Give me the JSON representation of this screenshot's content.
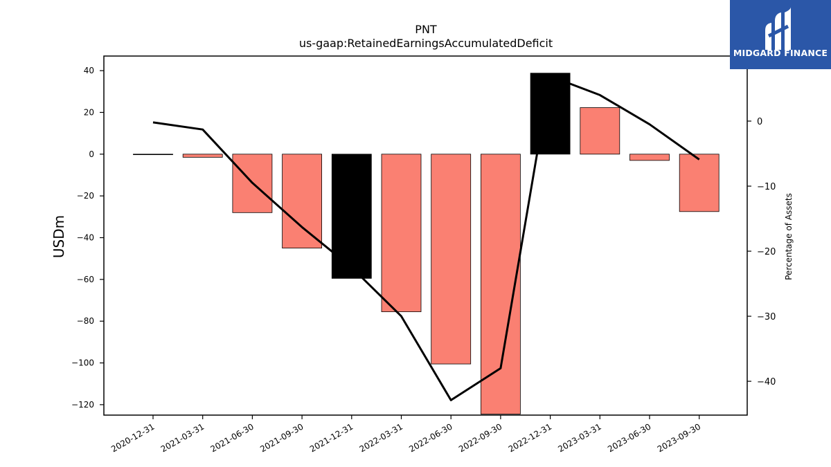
{
  "brand": {
    "name": "MIDGARD FINANCE",
    "color": "#2b57a8"
  },
  "chart_data": {
    "type": "bar",
    "title": "PNT",
    "subtitle": "us-gaap:RetainedEarningsAccumulatedDeficit",
    "ylabel": "USDm",
    "y2label": "Percentage of Assets",
    "categories": [
      "2020-12-31",
      "2021-03-31",
      "2021-06-30",
      "2021-09-30",
      "2021-12-31",
      "2022-03-31",
      "2022-06-30",
      "2022-09-30",
      "2022-12-31",
      "2023-03-31",
      "2023-06-30",
      "2023-09-30"
    ],
    "series": [
      {
        "type": "bar",
        "values": [
          0,
          -1.5,
          -28,
          -45,
          -59.5,
          -75.5,
          -100.5,
          -124.5,
          38.8,
          22.3,
          -3,
          -27.5
        ],
        "colors": [
          "#000000",
          "#fa8072",
          "#fa8072",
          "#fa8072",
          "#000000",
          "#fa8072",
          "#fa8072",
          "#fa8072",
          "#000000",
          "#fa8072",
          "#fa8072",
          "#fa8072"
        ]
      },
      {
        "type": "line",
        "axis": "right",
        "color": "#000000",
        "values": [
          -0.2,
          -1.3,
          -9.5,
          -16.3,
          -22.5,
          -30.0,
          -42.9,
          -38.0,
          6.9,
          4.0,
          -0.5,
          -5.9
        ]
      }
    ],
    "ylim": [
      -125,
      47
    ],
    "y2lim": [
      -45.2,
      10
    ],
    "yticks": [
      -120,
      -100,
      -80,
      -60,
      -40,
      -20,
      0,
      20,
      40
    ],
    "y2ticks": [
      -40,
      -30,
      -20,
      -10,
      0
    ],
    "grid": false,
    "legend": "none"
  }
}
